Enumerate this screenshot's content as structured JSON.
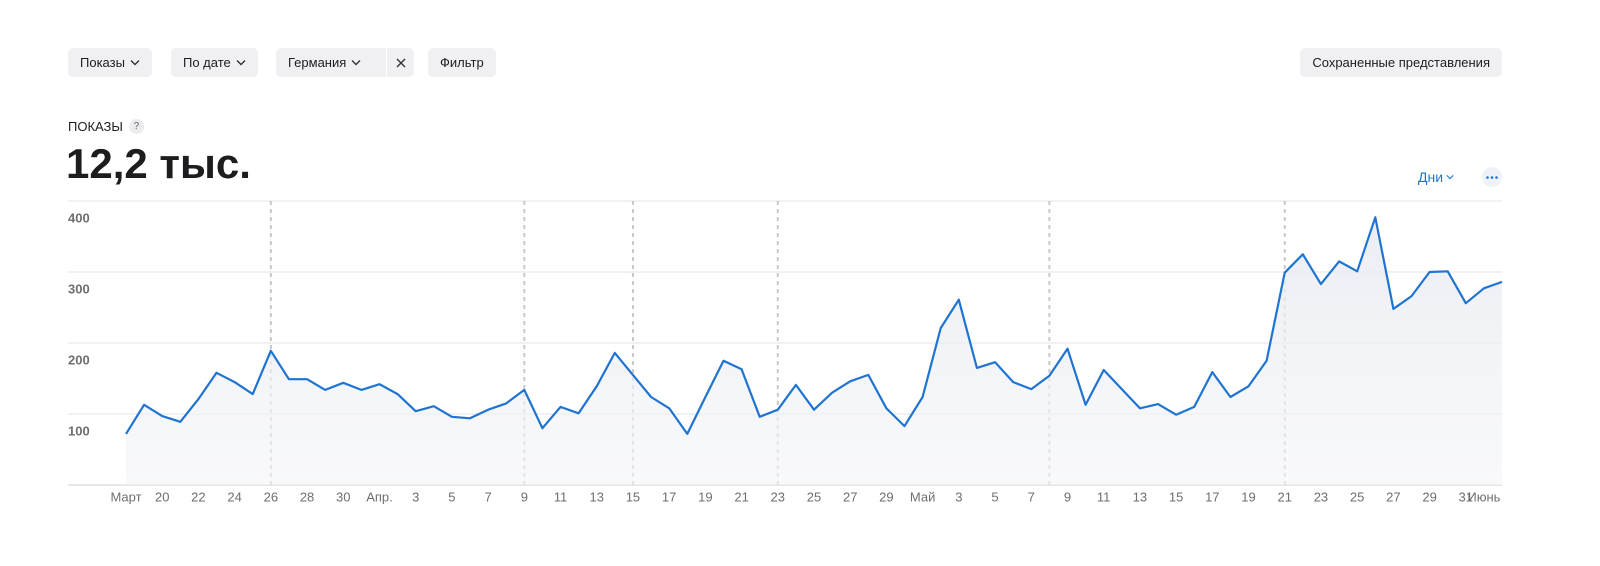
{
  "toolbar": {
    "filters": [
      "Показы",
      "По дате",
      "Германия"
    ],
    "filter_button": "Фильтр",
    "saved_views": "Сохраненные представления"
  },
  "metric": {
    "label": "ПОКАЗЫ",
    "help": "?",
    "value": "12,2 тыс."
  },
  "controls": {
    "period": "Дни"
  },
  "chart_data": {
    "type": "line",
    "categories": [
      "Март",
      null,
      "20",
      null,
      "22",
      null,
      "24",
      null,
      "26",
      null,
      "28",
      null,
      "30",
      null,
      "Апр.",
      null,
      "3",
      null,
      "5",
      null,
      "7",
      null,
      "9",
      null,
      "11",
      null,
      "13",
      null,
      "15",
      null,
      "17",
      null,
      "19",
      null,
      "21",
      null,
      "23",
      null,
      "25",
      null,
      "27",
      null,
      "29",
      null,
      "Май",
      null,
      "3",
      null,
      "5",
      null,
      "7",
      null,
      "9",
      null,
      "11",
      null,
      "13",
      null,
      "15",
      null,
      "17",
      null,
      "19",
      null,
      "21",
      null,
      "23",
      null,
      "25",
      null,
      "27",
      null,
      "29",
      null,
      "31",
      "Июнь",
      null
    ],
    "values": [
      72,
      113,
      97,
      89,
      121,
      158,
      145,
      128,
      189,
      149,
      149,
      134,
      144,
      134,
      142,
      128,
      104,
      111,
      96,
      94,
      106,
      115,
      134,
      80,
      110,
      101,
      139,
      186,
      155,
      124,
      108,
      72,
      124,
      175,
      163,
      96,
      106,
      141,
      106,
      130,
      146,
      155,
      108,
      83,
      124,
      221,
      261,
      165,
      173,
      145,
      135,
      154,
      192,
      113,
      162,
      135,
      108,
      114,
      99,
      110,
      159,
      124,
      139,
      175,
      299,
      325,
      283,
      315,
      301,
      377,
      248,
      266,
      300,
      301,
      256,
      277,
      286
    ],
    "color": "#1f74d1",
    "area": true,
    "ylim": [
      0,
      400
    ],
    "yticks": [
      100,
      200,
      300,
      400
    ],
    "grid": true,
    "marked_categories": [
      8,
      22,
      28,
      36,
      51,
      64
    ]
  }
}
